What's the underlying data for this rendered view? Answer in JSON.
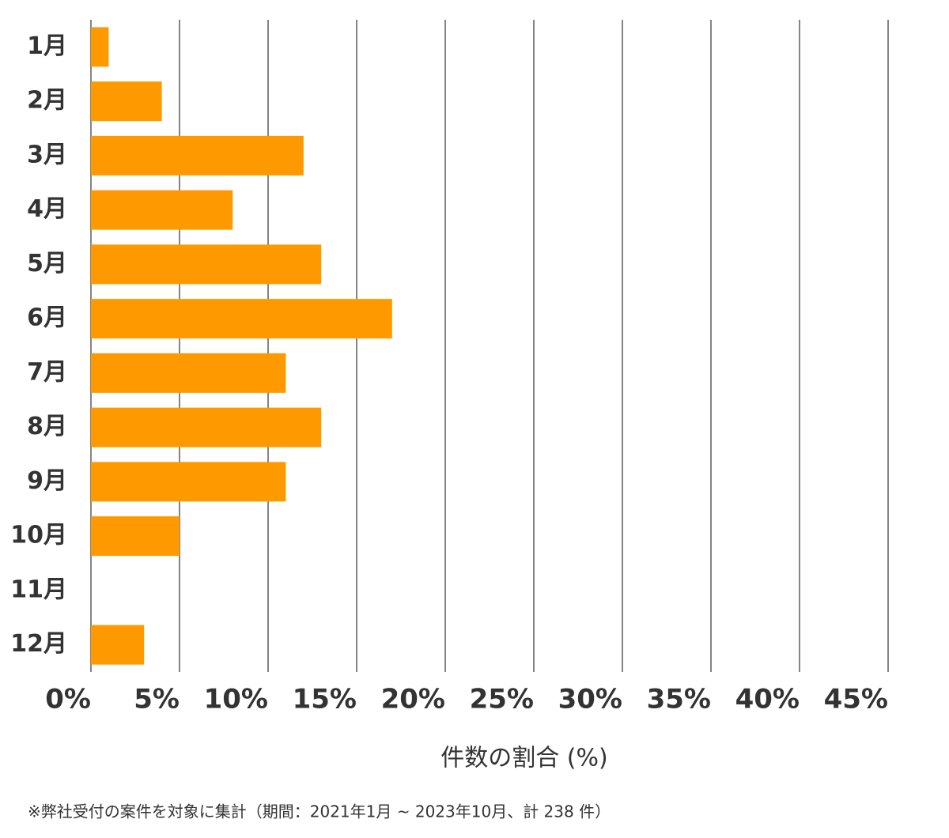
{
  "chart_data": {
    "type": "hbar",
    "categories": [
      "1月",
      "2月",
      "3月",
      "4月",
      "5月",
      "6月",
      "7月",
      "8月",
      "9月",
      "10月",
      "11月",
      "12月"
    ],
    "values": [
      1,
      4,
      12,
      8,
      13,
      17,
      11,
      13,
      11,
      5,
      0,
      3
    ],
    "color": "#ff9900",
    "xlim": [
      0,
      45
    ],
    "xticks": [
      {
        "value": 0,
        "label": "0%"
      },
      {
        "value": 5,
        "label": "5%"
      },
      {
        "value": 10,
        "label": "10%"
      },
      {
        "value": 15,
        "label": "15%"
      },
      {
        "value": 20,
        "label": "20%"
      },
      {
        "value": 25,
        "label": "25%"
      },
      {
        "value": 30,
        "label": "30%"
      },
      {
        "value": 35,
        "label": "35%"
      },
      {
        "value": 40,
        "label": "40%"
      },
      {
        "value": 45,
        "label": "45%"
      }
    ],
    "xlabel": "件数の割合 (%)",
    "grid": true,
    "note": "※弊社受付の案件を対象に集計（期間：2021年1月 ~ 2023年10月、計 238 件）"
  }
}
